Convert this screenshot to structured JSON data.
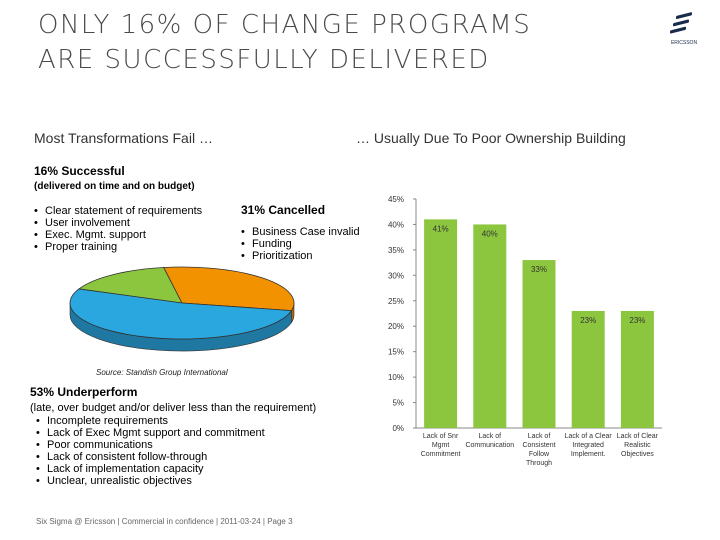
{
  "title_line1": "ONLY 16% OF CHANGE PROGRAMS",
  "title_line2": "ARE SUCCESSFULLY DELIVERED",
  "logo_text": "ERICSSON",
  "left_heading": "Most Transformations Fail …",
  "right_heading": "… Usually Due To Poor Ownership Building",
  "successful": {
    "label": "16%  Successful",
    "note": "(delivered on time and on budget)",
    "bullets": [
      "Clear statement of requirements",
      "User involvement",
      "Exec. Mgmt. support",
      "Proper training"
    ]
  },
  "cancelled": {
    "label": "31%  Cancelled",
    "bullets": [
      "Business Case invalid",
      "Funding",
      "Prioritization"
    ]
  },
  "underperform": {
    "label": "53%  Underperform",
    "note": "(late, over budget and/or deliver less than the requirement)",
    "bullets": [
      "Incomplete requirements",
      "Lack of Exec Mgmt support and commitment",
      "Poor communications",
      "Lack of consistent follow-through",
      "Lack of implementation capacity",
      "Unclear, unrealistic objectives"
    ]
  },
  "source": "Source: Standish Group International",
  "footer": "Six Sigma @ Ericsson  |  Commercial in confidence  |  2011-03-24  |  Page 3",
  "colors": {
    "green": "#8cc63f",
    "orange": "#f39200",
    "blue": "#2aa7df",
    "axis": "#888888"
  },
  "chart_data": [
    {
      "type": "pie",
      "categories": [
        "Successful",
        "Cancelled",
        "Underperform"
      ],
      "values": [
        16,
        31,
        53
      ],
      "colors": [
        "#8cc63f",
        "#f39200",
        "#2aa7df"
      ]
    },
    {
      "type": "bar",
      "categories": [
        [
          "Lack of Snr",
          "Mgmt",
          "Commitment"
        ],
        [
          "Lack of",
          "Communication"
        ],
        [
          "Lack of",
          "Consistent",
          "Follow",
          "Through"
        ],
        [
          "Lack of a Clear",
          "Integrated",
          "Implement."
        ],
        [
          "Lack of Clear",
          "Realistic",
          "Objectives"
        ]
      ],
      "values": [
        41,
        40,
        33,
        23,
        23
      ],
      "value_labels": [
        "41%",
        "40%",
        "33%",
        "23%",
        "23%"
      ],
      "y_ticks": [
        "0%",
        "5%",
        "10%",
        "15%",
        "20%",
        "25%",
        "30%",
        "35%",
        "40%",
        "45%"
      ],
      "ylim": [
        0,
        45
      ],
      "grid": false
    }
  ]
}
